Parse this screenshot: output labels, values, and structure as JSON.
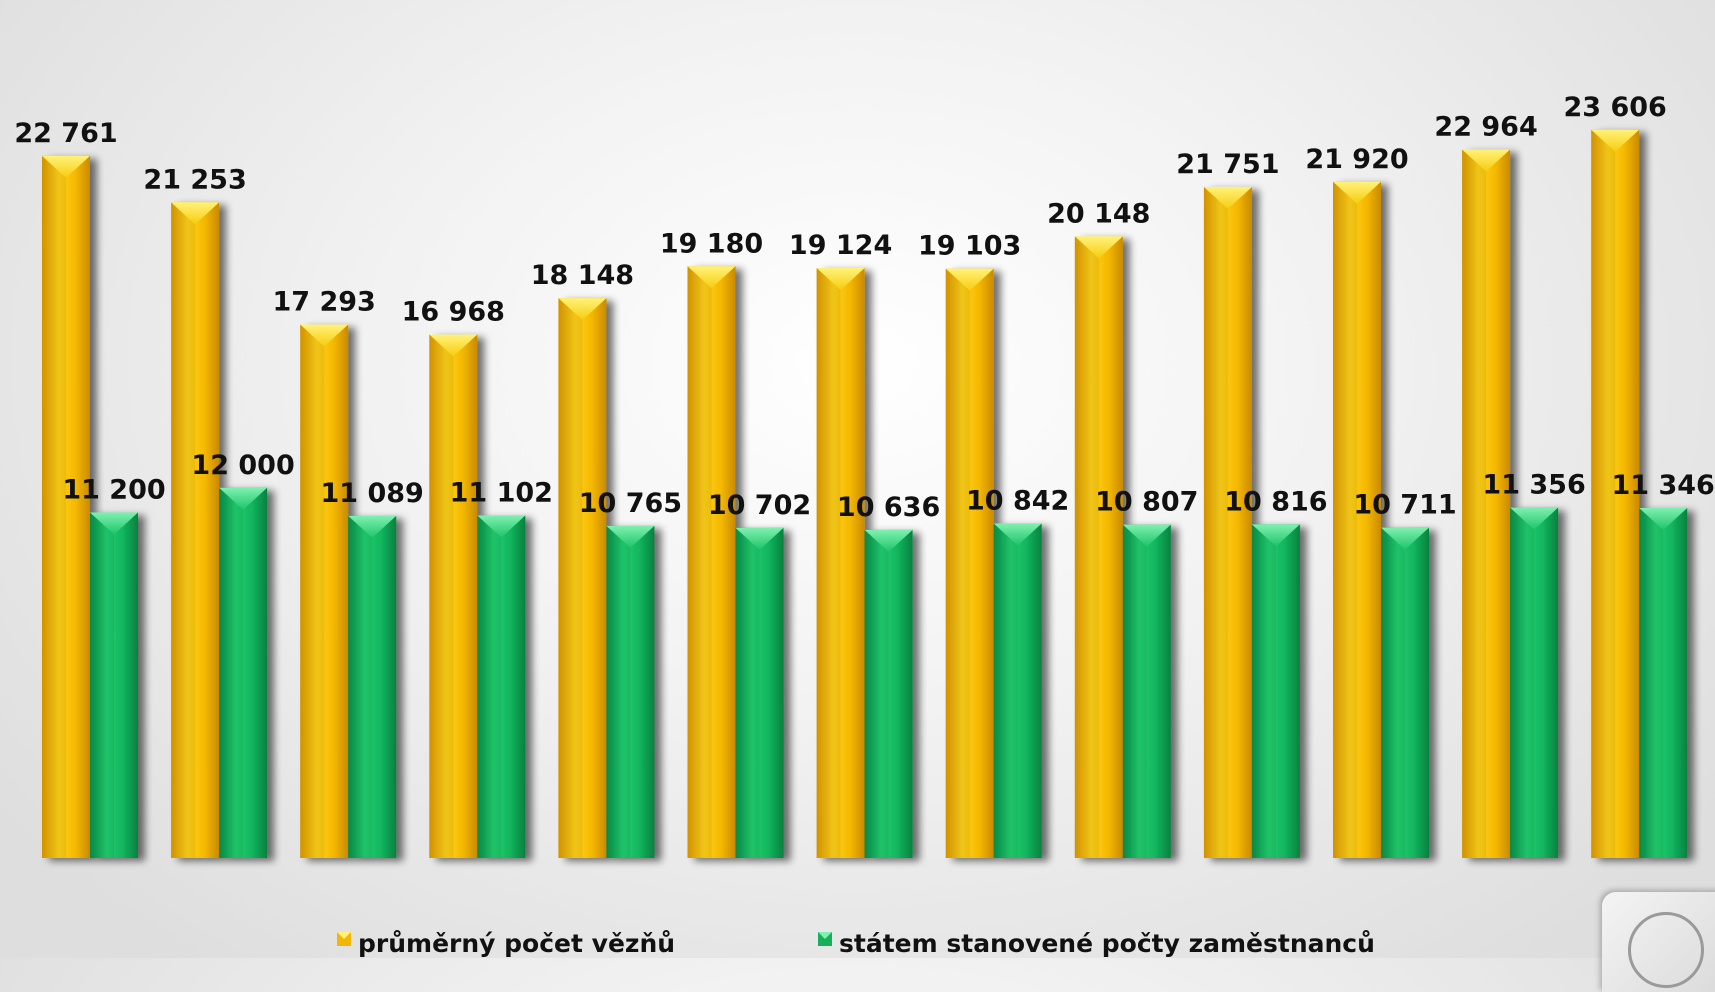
{
  "chart_data": {
    "type": "bar",
    "categories": [
      "",
      "",
      "",
      "",
      "",
      "",
      "",
      "",
      "",
      "",
      "",
      "",
      ""
    ],
    "series": [
      {
        "name": "průměrný počet vězňů",
        "values": [
          22761,
          21253,
          17293,
          16968,
          18148,
          19180,
          19124,
          19103,
          20148,
          21751,
          21920,
          22964,
          23606
        ],
        "labels": [
          "22 761",
          "21 253",
          "17 293",
          "16 968",
          "18 148",
          "19 180",
          "19 124",
          "19 103",
          "20 148",
          "21 751",
          "21 920",
          "22 964",
          "23 606"
        ],
        "color": "#F2B705"
      },
      {
        "name": "státem stanovené počty zaměstnanců",
        "values": [
          11200,
          12000,
          11089,
          11102,
          10765,
          10702,
          10636,
          10842,
          10807,
          10816,
          10711,
          11356,
          11346
        ],
        "labels": [
          "11 200",
          "12 000",
          "11 089",
          "11 102",
          "10 765",
          "10 702",
          "10 636",
          "10 842",
          "10 807",
          "10 816",
          "10 711",
          "11 356",
          "11 346"
        ],
        "color": "#16B05A"
      }
    ],
    "ylim": [
      0,
      24000
    ],
    "grid": false,
    "legend_position": "bottom"
  }
}
